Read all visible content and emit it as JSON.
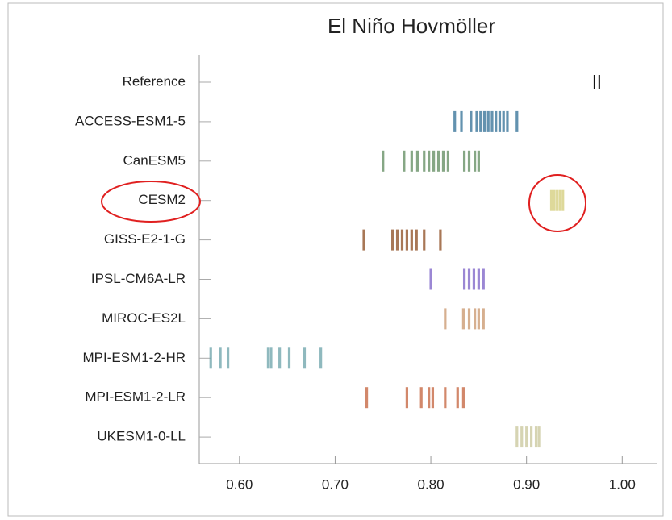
{
  "chart_data": {
    "type": "strip",
    "title": "El Niño Hovmöller",
    "xlim": [
      0.558,
      1.036
    ],
    "xticks": [
      {
        "value": 0.6,
        "label": "0.60"
      },
      {
        "value": 0.7,
        "label": "0.70"
      },
      {
        "value": 0.8,
        "label": "0.80"
      },
      {
        "value": 0.9,
        "label": "0.90"
      },
      {
        "value": 1.0,
        "label": "1.00"
      }
    ],
    "rows": [
      {
        "label": "Reference",
        "color": "#111111",
        "values": [
          0.971,
          0.976
        ]
      },
      {
        "label": "ACCESS-ESM1-5",
        "color": "#2f6e94",
        "values": [
          0.825,
          0.832,
          0.842,
          0.848,
          0.852,
          0.856,
          0.86,
          0.864,
          0.868,
          0.872,
          0.876,
          0.88,
          0.89
        ]
      },
      {
        "label": "CanESM5",
        "color": "#5e8a5c",
        "values": [
          0.75,
          0.772,
          0.78,
          0.786,
          0.793,
          0.798,
          0.803,
          0.808,
          0.813,
          0.818,
          0.835,
          0.84,
          0.846,
          0.85
        ]
      },
      {
        "label": "CESM2",
        "color": "#d3cc78",
        "values": [
          0.926,
          0.929,
          0.932,
          0.935,
          0.938
        ]
      },
      {
        "label": "GISS-E2-1-G",
        "color": "#8b4a1e",
        "values": [
          0.73,
          0.76,
          0.765,
          0.77,
          0.775,
          0.78,
          0.785,
          0.793,
          0.81
        ]
      },
      {
        "label": "IPSL-CM6A-LR",
        "color": "#7a5fc6",
        "values": [
          0.8,
          0.835,
          0.84,
          0.845,
          0.85,
          0.855
        ]
      },
      {
        "label": "MIROC-ES2L",
        "color": "#c8946a",
        "values": [
          0.815,
          0.834,
          0.84,
          0.846,
          0.85,
          0.855
        ]
      },
      {
        "label": "MPI-ESM1-2-HR",
        "color": "#6aa2a8",
        "values": [
          0.57,
          0.58,
          0.588,
          0.63,
          0.633,
          0.642,
          0.652,
          0.668,
          0.685
        ]
      },
      {
        "label": "MPI-ESM1-2-LR",
        "color": "#c3603a",
        "values": [
          0.733,
          0.775,
          0.79,
          0.798,
          0.802,
          0.815,
          0.828,
          0.834
        ]
      },
      {
        "label": "UKESM1-0-LL",
        "color": "#c8c69a",
        "values": [
          0.89,
          0.895,
          0.9,
          0.905,
          0.91,
          0.913
        ]
      }
    ]
  }
}
